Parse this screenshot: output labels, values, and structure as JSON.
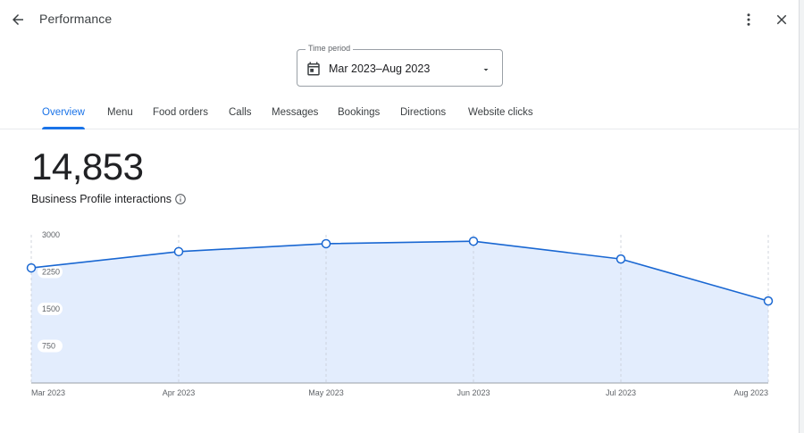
{
  "header": {
    "title": "Performance",
    "back_icon": "arrow-back-icon",
    "more_icon": "more-vert-icon",
    "close_icon": "close-icon"
  },
  "time_period": {
    "label": "Time period",
    "value": "Mar 2023–Aug 2023",
    "icon": "calendar-icon"
  },
  "tabs": [
    {
      "label": "Overview",
      "active": true
    },
    {
      "label": "Menu",
      "active": false
    },
    {
      "label": "Food orders",
      "active": false
    },
    {
      "label": "Calls",
      "active": false
    },
    {
      "label": "Messages",
      "active": false
    },
    {
      "label": "Bookings",
      "active": false
    },
    {
      "label": "Directions",
      "active": false
    },
    {
      "label": "Website clicks",
      "active": false
    }
  ],
  "summary": {
    "total": "14,853",
    "label": "Business Profile interactions",
    "info_icon": "info-icon"
  },
  "colors": {
    "accent": "#1a73e8",
    "line": "#1967d2",
    "area": "#e3edfd"
  },
  "chart_data": {
    "type": "area",
    "x": [
      "Mar 2023",
      "Apr 2023",
      "May 2023",
      "Jun 2023",
      "Jul 2023",
      "Aug 2023"
    ],
    "values": [
      2330,
      2660,
      2820,
      2870,
      2510,
      1660
    ],
    "y_ticks": [
      3000,
      2250,
      1500,
      750
    ],
    "ylim": [
      0,
      3000
    ],
    "grid": "vertical dashed",
    "markers": "hollow circles"
  }
}
